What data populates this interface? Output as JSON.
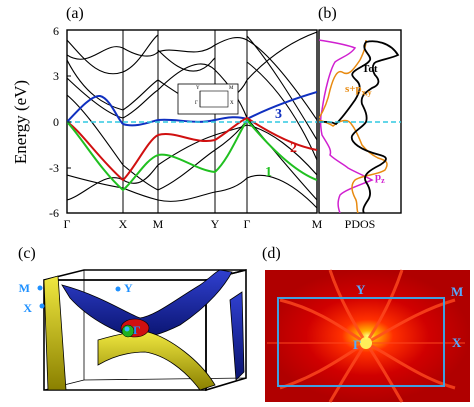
{
  "panels": {
    "a": "(a)",
    "b": "(b)",
    "c": "(c)",
    "d": "(d)"
  },
  "band_plot": {
    "ylabel": "Energy (eV)",
    "y_ticks": [
      "6",
      "3",
      "0",
      "-3",
      "-6"
    ],
    "k_labels": [
      "Γ",
      "X",
      "M",
      "Y",
      "Γ",
      "M"
    ],
    "band_labels": [
      {
        "text": "3",
        "color": "#1030c0"
      },
      {
        "text": "2",
        "color": "#d01010"
      },
      {
        "text": "1",
        "color": "#20c020"
      }
    ],
    "inset_labels": [
      "Y",
      "M",
      "Γ",
      "X"
    ]
  },
  "pdos_plot": {
    "xlabel": "PDOS",
    "labels": [
      {
        "text": "Tot",
        "color": "#000000"
      },
      {
        "text": "s+p",
        "sub": "x,y",
        "color": "#e88a10"
      },
      {
        "text": "p",
        "sub": "z",
        "color": "#d020d0"
      }
    ]
  },
  "fermi_surface": {
    "labels": [
      "M",
      "Y",
      "X",
      "Γ"
    ],
    "colors": {
      "blue": "#1a2aa8",
      "yellow": "#d8d000",
      "red": "#d01010",
      "green": "#20b020"
    }
  },
  "heatmap": {
    "labels": [
      "Y",
      "M",
      "X",
      "Γ"
    ],
    "colors": {
      "frame": "#3fa0e0",
      "background": "#d00000"
    }
  },
  "chart_data": [
    {
      "type": "line",
      "title": "",
      "ylabel": "Energy (eV)",
      "ylim": [
        -6,
        6
      ],
      "x_path": [
        "Γ",
        "X",
        "M",
        "Y",
        "Γ",
        "M"
      ],
      "fermi_level": 0,
      "series": [
        {
          "name": "3",
          "values": [
            0,
            -0.2,
            0.1,
            0.5,
            0,
            1.5
          ]
        },
        {
          "name": "2",
          "values": [
            0,
            -3.8,
            -1.5,
            -0.8,
            0,
            -2.3
          ]
        },
        {
          "name": "1",
          "values": [
            0,
            -4.6,
            -3.0,
            -3.5,
            0,
            -3.6
          ]
        }
      ]
    },
    {
      "type": "line",
      "xlabel": "PDOS",
      "ylim": [
        -6,
        6
      ],
      "series": [
        {
          "name": "Tot"
        },
        {
          "name": "s+p x,y"
        },
        {
          "name": "p z"
        }
      ]
    }
  ]
}
